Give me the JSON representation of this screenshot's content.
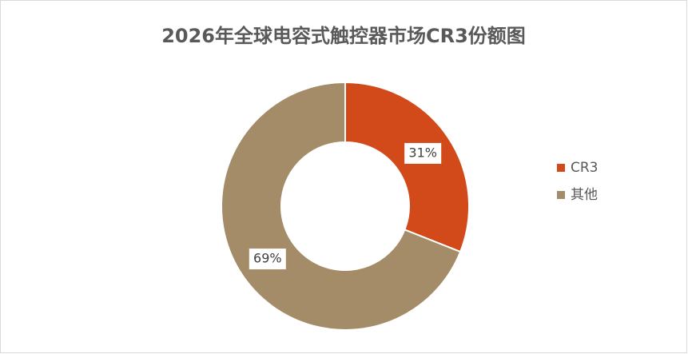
{
  "chart_data": {
    "type": "donut",
    "title": "2026年全球电容式触控器市场CR3份额图",
    "categories": [
      "CR3",
      "其他"
    ],
    "values": [
      31,
      69
    ],
    "value_labels": [
      "31%",
      "69%"
    ],
    "colors": [
      "#D24A1A",
      "#A58C69"
    ],
    "legend": "right"
  }
}
